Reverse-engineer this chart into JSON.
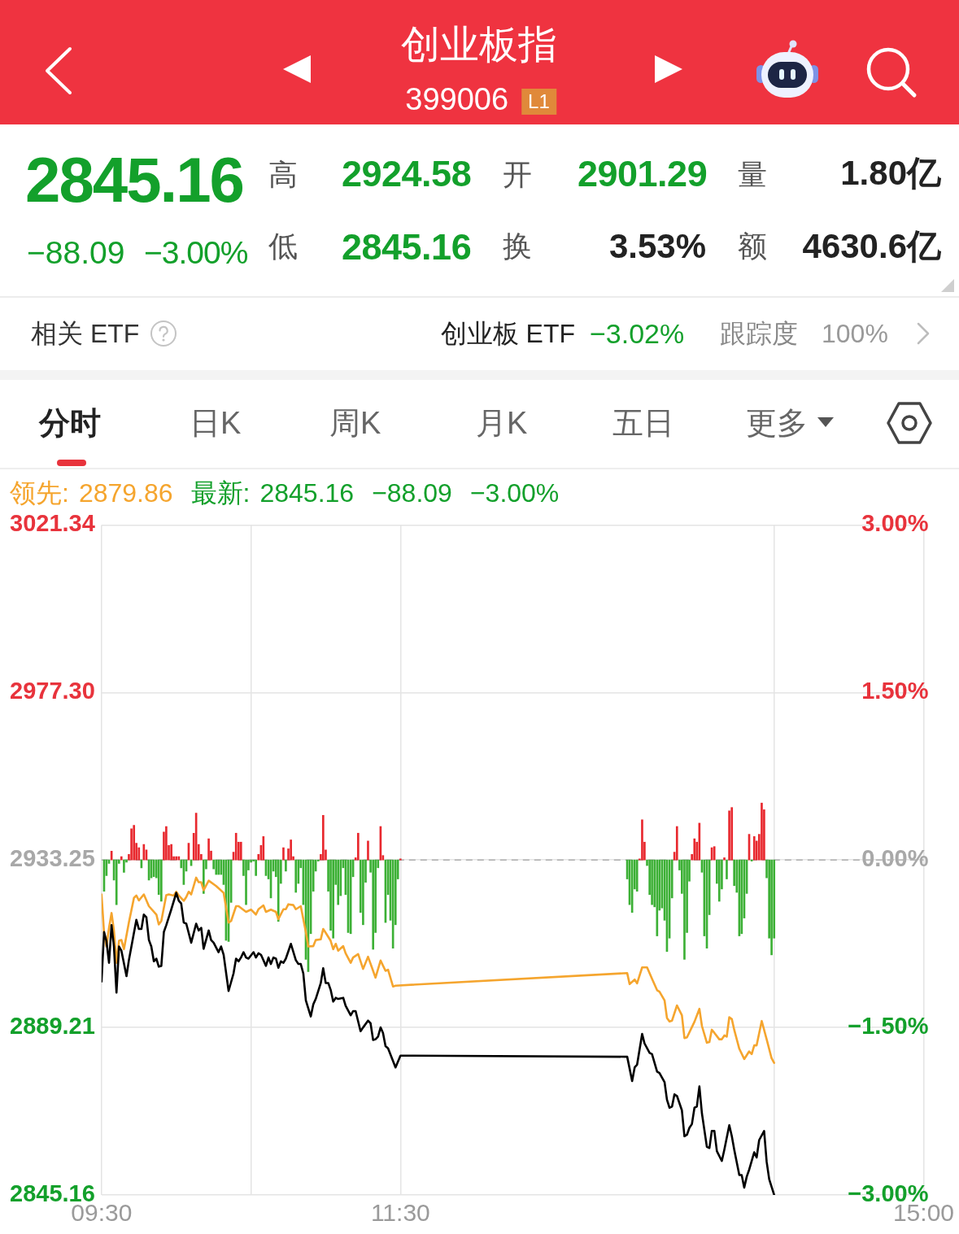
{
  "chart_data": [
    {
      "type": "other",
      "title": "创业板指",
      "subtitle": "399006",
      "annotations": [
        "L1",
        "2845.16",
        "−88.09",
        "−3.00%",
        "高",
        "2924.58",
        "开",
        "2901.29",
        "量",
        "1.80亿",
        "低",
        "2845.16",
        "换",
        "3.53%",
        "额",
        "4630.6亿",
        "相关 ETF",
        "创业板 ETF",
        "−3.02%",
        "跟踪度",
        "100%",
        "分时",
        "日K",
        "周K",
        "月K",
        "五日",
        "更多"
      ]
    },
    {
      "type": "line",
      "xlim": [
        9.5,
        15
      ],
      "xticks": [
        {
          "value": 9.5,
          "label": "09:30"
        },
        {
          "value": 10.5,
          "label": null
        },
        {
          "value": 11.5,
          "label": "11:30"
        },
        {
          "value": 14,
          "label": null
        },
        {
          "value": 15,
          "label": "15:00"
        }
      ],
      "ylim": [
        2845.16,
        3021.34
      ],
      "yticks": [
        2845.16,
        2889.21,
        2933.25,
        {
          "value": 2977.3,
          "label": "2977.30"
        },
        3021.34
      ],
      "y2lim": [
        -3,
        3
      ],
      "y2ticks": [
        {
          "value": -3,
          "label": "−3.00%"
        },
        {
          "value": -1.5,
          "label": "−1.50%"
        },
        {
          "value": 0,
          "label": "0.00%"
        },
        {
          "value": 1.5,
          "label": "1.50%"
        },
        {
          "value": 3,
          "label": "3.00%"
        }
      ],
      "grid": true,
      "legend": "top left",
      "annotations": [
        "2879.86",
        "最新:",
        "2845.16",
        "−88.09",
        "−3.00%"
      ],
      "ref_lines": [
        {
          "axis": "y",
          "value": 2933.25,
          "color": "#b0b0b0",
          "line_style": "dashed"
        }
      ],
      "series": [
        {
          "type": "bar",
          "axis": "y2",
          "x": [
            9.517,
            9.533,
            9.55,
            9.567,
            9.583,
            9.6,
            9.617,
            9.633,
            9.65,
            9.667,
            9.683,
            9.7,
            9.717,
            9.733,
            9.75,
            9.767,
            9.783,
            9.8,
            9.817,
            9.833,
            9.85,
            9.867,
            9.883,
            9.9,
            9.917,
            9.933,
            9.95,
            9.967,
            9.983,
            10,
            10.017,
            10.033,
            10.05,
            10.067,
            10.083,
            10.1,
            10.117,
            10.133,
            10.15,
            10.167,
            10.183,
            10.2,
            10.217,
            10.233,
            10.25,
            10.267,
            10.283,
            10.3,
            10.317,
            10.333,
            10.35,
            10.367,
            10.383,
            10.4,
            10.417,
            10.433,
            10.45,
            10.467,
            10.483,
            10.5,
            10.517,
            10.533,
            10.55,
            10.567,
            10.583,
            10.6,
            10.617,
            10.633,
            10.65,
            10.667,
            10.683,
            10.7,
            10.717,
            10.733,
            10.75,
            10.767,
            10.783,
            10.8,
            10.817,
            10.833,
            10.85,
            10.867,
            10.883,
            10.9,
            10.917,
            10.933,
            10.95,
            10.967,
            10.983,
            11,
            11.017,
            11.033,
            11.05,
            11.067,
            11.083,
            11.1,
            11.117,
            11.133,
            11.15,
            11.167,
            11.183,
            11.2,
            11.217,
            11.233,
            11.25,
            11.267,
            11.283,
            11.3,
            11.317,
            11.333,
            11.35,
            11.367,
            11.383,
            11.4,
            11.417,
            11.433,
            11.45,
            11.467,
            11.483,
            11.5,
            13.017,
            13.033,
            13.05,
            13.067,
            13.083,
            13.1,
            13.117,
            13.133,
            13.15,
            13.167,
            13.183,
            13.2,
            13.217,
            13.233,
            13.25,
            13.267,
            13.283,
            13.3,
            13.317,
            13.333,
            13.35,
            13.367,
            13.383,
            13.4,
            13.417,
            13.433,
            13.45,
            13.467,
            13.483,
            13.5,
            13.517,
            13.533,
            13.55,
            13.567,
            13.583,
            13.6,
            13.617,
            13.633,
            13.65,
            13.667,
            13.683,
            13.7,
            13.717,
            13.733,
            13.75,
            13.767,
            13.783,
            13.8,
            13.817,
            13.833,
            13.85,
            13.867,
            13.883,
            13.9,
            13.917,
            13.933,
            13.95,
            13.967,
            13.983,
            14
          ],
          "values": [
            -0.28,
            -0.14,
            -0.03,
            0.08,
            -0.18,
            -0.4,
            -0.03,
            0.03,
            -0.11,
            -0.02,
            0.05,
            0.28,
            0.31,
            0.15,
            0.11,
            -0.07,
            0.14,
            0.09,
            -0.18,
            -0.16,
            -0.15,
            -0.16,
            -0.31,
            -0.37,
            0.25,
            0.3,
            0.13,
            0.14,
            0.03,
            0.03,
            0.03,
            -0.07,
            -0.22,
            -0.1,
            0.15,
            -0.05,
            0.24,
            0.42,
            0.14,
            0.05,
            -0.3,
            -0.08,
            0.19,
            0.08,
            -0.08,
            -0.13,
            -0.13,
            -0.13,
            -0.22,
            -0.72,
            -0.73,
            -0.38,
            0.07,
            0.24,
            0.16,
            0.16,
            -0.14,
            -0.4,
            -0.09,
            -0.02,
            -0.01,
            -0.14,
            0.05,
            0.13,
            0.21,
            -0.14,
            -0.17,
            -0.34,
            -0.1,
            -0.15,
            -0.55,
            -0.21,
            0.11,
            -0.1,
            0.1,
            0.18,
            0.03,
            -0.29,
            -0.21,
            -0.07,
            -0.4,
            -0.89,
            -1.0,
            -0.66,
            -0.28,
            -0.1,
            -0.01,
            0.05,
            0.4,
            0.09,
            -0.28,
            -0.63,
            -0.7,
            -0.22,
            -0.4,
            -0.32,
            -0.07,
            -0.31,
            -0.65,
            -0.66,
            -0.15,
            0.02,
            0.24,
            -0.47,
            -0.58,
            -0.2,
            0.17,
            -0.11,
            -0.8,
            -0.65,
            -0.07,
            0.3,
            0.04,
            -0.56,
            -0.31,
            -0.54,
            -0.79,
            -0.58,
            -0.17,
            0.01,
            -0.17,
            -0.4,
            -0.47,
            -0.26,
            -0.28,
            0.01,
            0.36,
            0.16,
            -0.05,
            -0.31,
            -0.4,
            -0.42,
            -0.68,
            -0.45,
            -0.43,
            -0.54,
            -0.82,
            -0.7,
            -0.34,
            0.07,
            0.3,
            -0.09,
            -0.3,
            -0.89,
            -0.65,
            -0.19,
            0.05,
            0.19,
            0.16,
            0.33,
            -0.11,
            -0.68,
            -0.79,
            -0.49,
            0.11,
            0.12,
            -0.21,
            -0.37,
            -0.26,
            0.02,
            -0.17,
            0.44,
            0.47,
            -0.23,
            -0.29,
            -0.68,
            -0.66,
            -0.52,
            -0.3,
            0.23,
            -0.01,
            0.21,
            0.17,
            0.23,
            0.51,
            0.45,
            -0.16,
            -0.7,
            -0.85,
            -0.7
          ],
          "colors": [
            "#3cb035",
            "#3cb035",
            "#3cb035",
            "#e8282e",
            "#3cb035",
            "#3cb035",
            "#3cb035",
            "#e8282e",
            "#3cb035",
            "#3cb035",
            "#e8282e",
            "#e8282e",
            "#e8282e",
            "#e8282e",
            "#e8282e",
            "#3cb035",
            "#e8282e",
            "#e8282e",
            "#3cb035",
            "#3cb035",
            "#3cb035",
            "#3cb035",
            "#3cb035",
            "#3cb035",
            "#e8282e",
            "#e8282e",
            "#e8282e",
            "#e8282e",
            "#e8282e",
            "#e8282e",
            "#e8282e",
            "#3cb035",
            "#3cb035",
            "#3cb035",
            "#e8282e",
            "#3cb035",
            "#e8282e",
            "#e8282e",
            "#e8282e",
            "#e8282e",
            "#3cb035",
            "#3cb035",
            "#e8282e",
            "#e8282e",
            "#3cb035",
            "#3cb035",
            "#3cb035",
            "#3cb035",
            "#3cb035",
            "#3cb035",
            "#3cb035",
            "#3cb035",
            "#e8282e",
            "#e8282e",
            "#e8282e",
            "#e8282e",
            "#3cb035",
            "#3cb035",
            "#3cb035",
            "#3cb035",
            "#3cb035",
            "#3cb035",
            "#e8282e",
            "#e8282e",
            "#e8282e",
            "#3cb035",
            "#3cb035",
            "#3cb035",
            "#3cb035",
            "#3cb035",
            "#3cb035",
            "#3cb035",
            "#e8282e",
            "#3cb035",
            "#e8282e",
            "#e8282e",
            "#e8282e",
            "#3cb035",
            "#3cb035",
            "#3cb035",
            "#3cb035",
            "#3cb035",
            "#3cb035",
            "#3cb035",
            "#3cb035",
            "#3cb035",
            "#3cb035",
            "#e8282e",
            "#e8282e",
            "#e8282e",
            "#3cb035",
            "#3cb035",
            "#3cb035",
            "#3cb035",
            "#3cb035",
            "#3cb035",
            "#3cb035",
            "#3cb035",
            "#3cb035",
            "#3cb035",
            "#3cb035",
            "#e8282e",
            "#e8282e",
            "#3cb035",
            "#3cb035",
            "#3cb035",
            "#e8282e",
            "#3cb035",
            "#3cb035",
            "#3cb035",
            "#3cb035",
            "#e8282e",
            "#e8282e",
            "#3cb035",
            "#3cb035",
            "#3cb035",
            "#3cb035",
            "#3cb035",
            "#3cb035",
            "#e8282e",
            "#3cb035",
            "#3cb035",
            "#3cb035",
            "#3cb035",
            "#3cb035",
            "#e8282e",
            "#e8282e",
            "#e8282e",
            "#3cb035",
            "#3cb035",
            "#3cb035",
            "#3cb035",
            "#3cb035",
            "#3cb035",
            "#3cb035",
            "#3cb035",
            "#3cb035",
            "#3cb035",
            "#3cb035",
            "#e8282e",
            "#e8282e",
            "#3cb035",
            "#3cb035",
            "#3cb035",
            "#3cb035",
            "#3cb035",
            "#e8282e",
            "#e8282e",
            "#e8282e",
            "#e8282e",
            "#3cb035",
            "#3cb035",
            "#3cb035",
            "#3cb035",
            "#e8282e",
            "#e8282e",
            "#3cb035",
            "#3cb035",
            "#3cb035",
            "#e8282e",
            "#3cb035",
            "#e8282e",
            "#e8282e",
            "#3cb035",
            "#3cb035",
            "#3cb035",
            "#3cb035",
            "#3cb035",
            "#3cb035",
            "#e8282e",
            "#3cb035",
            "#e8282e",
            "#e8282e",
            "#e8282e",
            "#e8282e",
            "#e8282e",
            "#3cb035",
            "#3cb035",
            "#3cb035",
            "#3cb035"
          ]
        },
        {
          "name": "领先:",
          "color": "#f5a52e",
          "x": [
            9.5,
            9.517,
            9.533,
            9.55,
            9.567,
            9.583,
            9.6,
            9.617,
            9.633,
            9.65,
            9.683,
            9.717,
            9.733,
            9.75,
            9.783,
            9.817,
            9.867,
            9.883,
            9.9,
            9.933,
            9.95,
            9.983,
            10,
            10.017,
            10.05,
            10.067,
            10.083,
            10.1,
            10.133,
            10.15,
            10.167,
            10.183,
            10.217,
            10.267,
            10.317,
            10.35,
            10.367,
            10.4,
            10.417,
            10.467,
            10.5,
            10.533,
            10.55,
            10.583,
            10.6,
            10.633,
            10.667,
            10.683,
            10.717,
            10.733,
            10.75,
            10.783,
            10.8,
            10.833,
            10.867,
            10.883,
            10.917,
            10.933,
            10.967,
            10.983,
            11,
            11.033,
            11.05,
            11.067,
            11.083,
            11.117,
            11.133,
            11.167,
            11.183,
            11.217,
            11.25,
            11.283,
            11.317,
            11.333,
            11.367,
            11.4,
            11.417,
            11.45,
            11.467,
            13.017,
            13.033,
            13.067,
            13.083,
            13.117,
            13.15,
            13.183,
            13.217,
            13.233,
            13.267,
            13.283,
            13.3,
            13.317,
            13.35,
            13.383,
            13.4,
            13.417,
            13.467,
            13.5,
            13.517,
            13.55,
            13.567,
            13.583,
            13.6,
            13.633,
            13.65,
            13.667,
            13.683,
            13.7,
            13.717,
            13.733,
            13.767,
            13.8,
            13.833,
            13.85,
            13.867,
            13.883,
            13.917,
            13.95,
            13.983,
            14
          ],
          "values": [
            2924.2,
            2914.0,
            2910.5,
            2915.4,
            2919.3,
            2914.7,
            2906.2,
            2912.0,
            2912.2,
            2909.8,
            2916.8,
            2923.3,
            2923.9,
            2922.6,
            2924.2,
            2921.1,
            2918.9,
            2916.3,
            2917.2,
            2924.0,
            2924.2,
            2923.9,
            2924.9,
            2923.9,
            2922.5,
            2923.5,
            2924.9,
            2924.2,
            2928.6,
            2927.4,
            2927.4,
            2925.3,
            2927.8,
            2926.4,
            2924.6,
            2916.8,
            2917.2,
            2921.1,
            2921.1,
            2919.6,
            2920.2,
            2918.9,
            2920.3,
            2921.3,
            2919.6,
            2920.2,
            2919.6,
            2917.7,
            2920.3,
            2920.3,
            2921.6,
            2921.4,
            2920.3,
            2921.1,
            2914.3,
            2910.5,
            2910.6,
            2912.2,
            2912.4,
            2915.1,
            2914.1,
            2912.0,
            2909.8,
            2911.2,
            2909.4,
            2910.6,
            2908.7,
            2906.2,
            2907.6,
            2908.5,
            2904.6,
            2907.8,
            2904.1,
            2902.3,
            2906.8,
            2904.1,
            2904.4,
            2900.0,
            2900.2,
            2903.5,
            2900.6,
            2901.8,
            2900.8,
            2905.0,
            2905.0,
            2902.0,
            2899.0,
            2898.6,
            2896.3,
            2891.7,
            2890.8,
            2891.0,
            2895.0,
            2892.4,
            2886.4,
            2886.6,
            2890.7,
            2894.1,
            2889.6,
            2885.2,
            2885.4,
            2888.6,
            2887.8,
            2886.1,
            2886.1,
            2887.1,
            2886.8,
            2891.9,
            2891.4,
            2888.6,
            2883.6,
            2880.9,
            2882.9,
            2882.2,
            2884.5,
            2884.5,
            2890.9,
            2886.1,
            2881.1,
            2879.9
          ]
        },
        {
          "color": "#000000",
          "x": [
            9.5,
            9.517,
            9.533,
            9.55,
            9.567,
            9.583,
            9.6,
            9.617,
            9.633,
            9.667,
            9.683,
            9.7,
            9.733,
            9.75,
            9.767,
            9.783,
            9.8,
            9.817,
            9.833,
            9.85,
            9.867,
            9.883,
            9.9,
            9.917,
            9.933,
            9.95,
            9.967,
            10,
            10.017,
            10.033,
            10.05,
            10.067,
            10.1,
            10.133,
            10.15,
            10.167,
            10.183,
            10.217,
            10.233,
            10.25,
            10.283,
            10.3,
            10.317,
            10.35,
            10.383,
            10.4,
            10.417,
            10.433,
            10.45,
            10.467,
            10.483,
            10.517,
            10.533,
            10.55,
            10.567,
            10.6,
            10.617,
            10.633,
            10.65,
            10.667,
            10.683,
            10.7,
            10.717,
            10.733,
            10.767,
            10.8,
            10.817,
            10.833,
            10.85,
            10.867,
            10.9,
            10.917,
            10.933,
            10.967,
            10.983,
            11,
            11.017,
            11.033,
            11.05,
            11.067,
            11.083,
            11.117,
            11.133,
            11.167,
            11.183,
            11.2,
            11.233,
            11.25,
            11.283,
            11.3,
            11.317,
            11.333,
            11.35,
            11.367,
            11.383,
            11.4,
            11.417,
            11.467,
            11.5,
            13.017,
            13.05,
            13.067,
            13.083,
            13.117,
            13.133,
            13.167,
            13.183,
            13.217,
            13.233,
            13.267,
            13.283,
            13.3,
            13.317,
            13.333,
            13.35,
            13.383,
            13.4,
            13.417,
            13.433,
            13.45,
            13.467,
            13.483,
            13.5,
            13.517,
            13.55,
            13.567,
            13.583,
            13.6,
            13.617,
            13.65,
            13.667,
            13.7,
            13.717,
            13.733,
            13.767,
            13.783,
            13.8,
            13.817,
            13.833,
            13.867,
            13.883,
            13.9,
            13.933,
            13.95,
            13.967,
            14
          ],
          "values": [
            2901.3,
            2914.3,
            2911.9,
            2906.2,
            2916.1,
            2910.5,
            2898.4,
            2910.5,
            2909.4,
            2902.7,
            2906.9,
            2910.5,
            2917.5,
            2915.1,
            2915.1,
            2918.9,
            2918.2,
            2912.2,
            2910.5,
            2906.6,
            2907.3,
            2905.2,
            2905.4,
            2914.3,
            2916.1,
            2918.2,
            2920.3,
            2924.6,
            2922.5,
            2921.8,
            2916.8,
            2916.5,
            2911.5,
            2916.5,
            2914.7,
            2915.4,
            2909.9,
            2914.7,
            2912.2,
            2911.5,
            2909.0,
            2910.5,
            2908.3,
            2898.8,
            2903.4,
            2907.3,
            2906.6,
            2907.6,
            2909.0,
            2907.6,
            2907.3,
            2909.0,
            2907.6,
            2908.7,
            2908.3,
            2905.4,
            2907.6,
            2905.9,
            2907.6,
            2907.3,
            2904.9,
            2906.6,
            2906.2,
            2907.3,
            2911.2,
            2906.9,
            2905.9,
            2905.9,
            2903.4,
            2896.3,
            2892.1,
            2895.3,
            2896.7,
            2900.9,
            2904.8,
            2900.9,
            2900.9,
            2899.1,
            2896.0,
            2897.0,
            2896.7,
            2897.0,
            2894.9,
            2892.4,
            2893.5,
            2893.5,
            2888.2,
            2889.2,
            2891.0,
            2890.3,
            2885.9,
            2886.1,
            2886.8,
            2889.2,
            2887.8,
            2884.3,
            2883.7,
            2878.7,
            2881.8,
            2881.5,
            2875.1,
            2878.7,
            2879.4,
            2887.5,
            2885.0,
            2882.5,
            2882.2,
            2877.6,
            2877.2,
            2874.8,
            2870.2,
            2868.1,
            2868.4,
            2871.6,
            2871.2,
            2867.4,
            2860.6,
            2861.0,
            2862.8,
            2863.8,
            2868.1,
            2868.4,
            2873.7,
            2866.6,
            2857.8,
            2857.5,
            2862.0,
            2862.0,
            2856.7,
            2854.1,
            2857.1,
            2863.5,
            2860.6,
            2857.1,
            2850.4,
            2850.4,
            2847.1,
            2850.0,
            2851.8,
            2856.4,
            2855.0,
            2859.6,
            2862.0,
            2853.9,
            2849.3,
            2845.2
          ]
        }
      ]
    }
  ]
}
